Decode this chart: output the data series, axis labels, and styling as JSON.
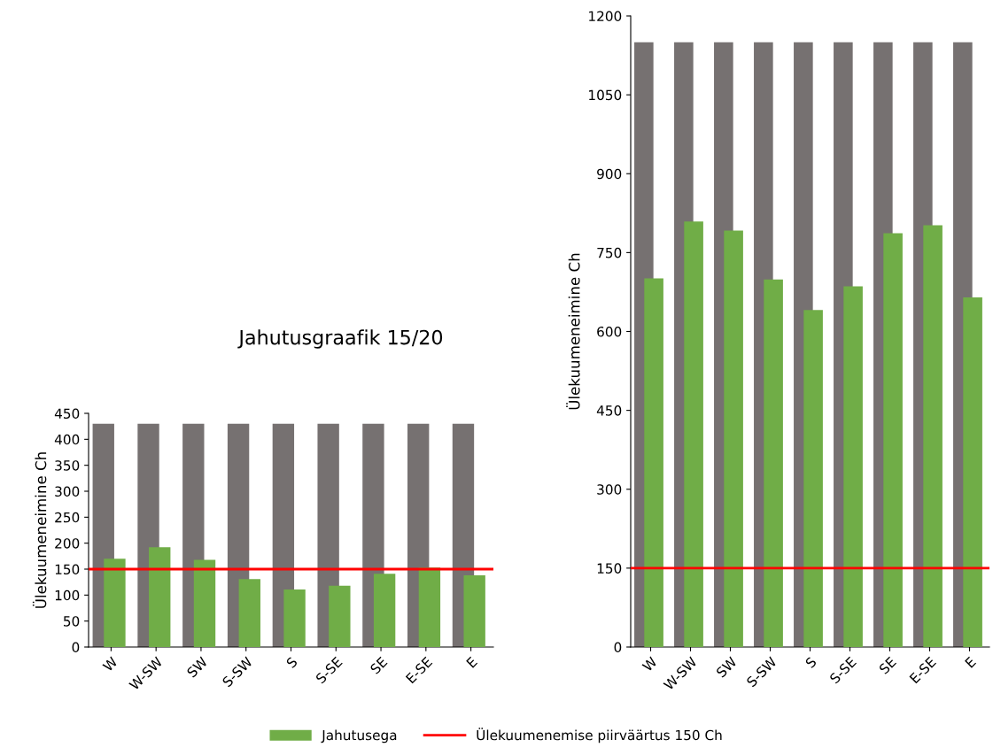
{
  "chart_data": [
    {
      "type": "bar",
      "title": "Jahutusgraafik 15/20",
      "ylabel": "Ülekuumeneimine Ch",
      "categories": [
        "W",
        "W-SW",
        "SW",
        "S-SW",
        "S",
        "S-SE",
        "SE",
        "E-SE",
        "E"
      ],
      "series": [
        {
          "color": "#767171",
          "values": [
            430,
            430,
            430,
            430,
            430,
            430,
            430,
            430,
            430
          ]
        },
        {
          "name": "Jahutusega",
          "color": "#70ad47",
          "values": [
            170,
            192,
            168,
            131,
            111,
            118,
            141,
            153,
            138
          ]
        }
      ],
      "ylim": [
        0,
        450
      ],
      "yticks": [
        0,
        50,
        100,
        150,
        200,
        250,
        300,
        350,
        400,
        450
      ],
      "ref_lines": [
        {
          "axis": "y",
          "value": 150,
          "label": "Ülekuumenemise piirväärtus 150 Ch",
          "color": "#ff0000"
        }
      ],
      "legend": "bottom",
      "grid": false
    },
    {
      "type": "bar",
      "ylabel": "Ülekuumeneimine Ch",
      "categories": [
        "W",
        "W-SW",
        "SW",
        "S-SW",
        "S",
        "S-SE",
        "SE",
        "E-SE",
        "E"
      ],
      "series": [
        {
          "color": "#767171",
          "values": [
            1150,
            1150,
            1150,
            1150,
            1150,
            1150,
            1150,
            1150,
            1150
          ]
        },
        {
          "color": "#70ad47",
          "values": [
            701,
            809,
            792,
            699,
            641,
            686,
            787,
            802,
            665
          ]
        }
      ],
      "ylim": [
        0,
        1200
      ],
      "yticks": [
        0,
        150,
        300,
        450,
        600,
        750,
        900,
        1050,
        1200
      ],
      "ref_lines": [
        {
          "axis": "y",
          "value": 150,
          "color": "#ff0000"
        }
      ],
      "grid": false
    }
  ]
}
